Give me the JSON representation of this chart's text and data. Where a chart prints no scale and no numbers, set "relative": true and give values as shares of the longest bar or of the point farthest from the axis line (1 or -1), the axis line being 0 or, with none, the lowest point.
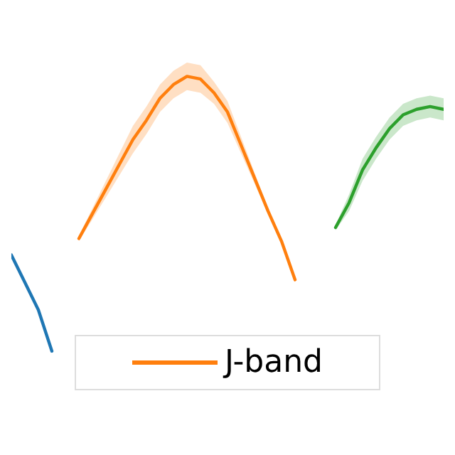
{
  "chart_data": {
    "type": "line",
    "relative": true,
    "legend": "bottom",
    "categories": [
      null,
      null,
      null,
      null,
      null,
      null,
      null,
      null,
      null,
      null,
      null,
      null,
      null,
      null,
      null,
      null,
      null,
      null,
      null,
      null,
      null,
      null,
      null,
      null,
      null,
      null,
      null,
      null,
      null,
      null,
      null,
      null,
      null
    ],
    "series": [
      {
        "color": "#1f77b4",
        "values": [
          0.35,
          0.25,
          0.15,
          0,
          null,
          null,
          null,
          null,
          null,
          null,
          null,
          null,
          null,
          null,
          null,
          null,
          null,
          null,
          null,
          null,
          null,
          null,
          null,
          null,
          null,
          null,
          null,
          null,
          null,
          null,
          null,
          null,
          null
        ]
      },
      {
        "name": "J-band",
        "color": "#ff7f0e",
        "values": [
          null,
          null,
          null,
          null,
          null,
          0.41,
          0.5,
          0.59,
          0.68,
          0.77,
          0.84,
          0.92,
          0.97,
          1,
          0.99,
          0.94,
          0.87,
          0.75,
          0.63,
          0.51,
          0.4,
          0.26,
          null,
          null,
          null,
          null,
          null,
          null,
          null,
          null,
          null,
          null,
          null
        ],
        "lower": [
          null,
          null,
          null,
          null,
          null,
          0.4,
          0.48,
          0.56,
          0.64,
          0.72,
          0.79,
          0.87,
          0.92,
          0.95,
          0.94,
          0.9,
          0.83,
          0.72,
          0.61,
          0.5,
          0.39,
          0.25,
          null,
          null,
          null,
          null,
          null,
          null,
          null,
          null,
          null,
          null,
          null
        ],
        "upper": [
          null,
          null,
          null,
          null,
          null,
          0.42,
          0.52,
          0.62,
          0.72,
          0.82,
          0.89,
          0.97,
          1.02,
          1.05,
          1.04,
          0.98,
          0.91,
          0.78,
          0.65,
          0.52,
          0.41,
          0.27,
          null,
          null,
          null,
          null,
          null,
          null,
          null,
          null,
          null,
          null,
          null
        ]
      },
      {
        "color": "#2ca02c",
        "values": [
          null,
          null,
          null,
          null,
          null,
          null,
          null,
          null,
          null,
          null,
          null,
          null,
          null,
          null,
          null,
          null,
          null,
          null,
          null,
          null,
          null,
          null,
          null,
          null,
          0.45,
          0.54,
          0.66,
          0.74,
          0.81,
          0.86,
          0.88,
          0.89,
          0.88
        ],
        "lower": [
          null,
          null,
          null,
          null,
          null,
          null,
          null,
          null,
          null,
          null,
          null,
          null,
          null,
          null,
          null,
          null,
          null,
          null,
          null,
          null,
          null,
          null,
          null,
          null,
          0.44,
          0.51,
          0.62,
          0.7,
          0.77,
          0.82,
          0.84,
          0.85,
          0.84
        ],
        "upper": [
          null,
          null,
          null,
          null,
          null,
          null,
          null,
          null,
          null,
          null,
          null,
          null,
          null,
          null,
          null,
          null,
          null,
          null,
          null,
          null,
          null,
          null,
          null,
          null,
          0.46,
          0.57,
          0.7,
          0.78,
          0.85,
          0.9,
          0.92,
          0.93,
          0.92
        ]
      }
    ]
  }
}
